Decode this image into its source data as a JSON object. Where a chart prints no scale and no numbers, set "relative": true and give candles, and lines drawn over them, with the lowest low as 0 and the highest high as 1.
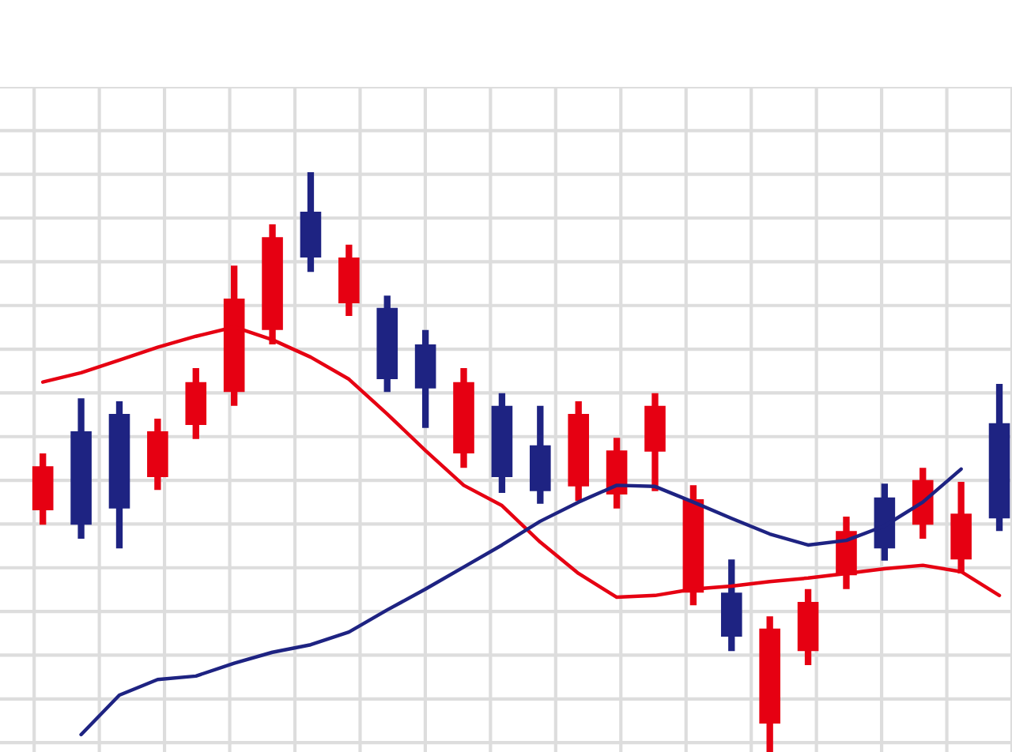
{
  "chart_data": {
    "type": "candlestick",
    "relative": true,
    "grid": true,
    "categories": [
      null,
      null,
      null,
      null,
      null,
      null,
      null,
      null,
      null,
      null,
      null,
      null,
      null,
      null,
      null,
      null,
      null,
      null,
      null,
      null,
      null,
      null,
      null,
      null,
      null,
      null
    ],
    "ohlc": [
      [
        0.417,
        0.515,
        0.392,
        0.493
      ],
      [
        0.553,
        0.61,
        0.368,
        0.392
      ],
      [
        0.583,
        0.605,
        0.351,
        0.42
      ],
      [
        0.474,
        0.575,
        0.452,
        0.553
      ],
      [
        0.564,
        0.662,
        0.54,
        0.638
      ],
      [
        0.621,
        0.839,
        0.597,
        0.782
      ],
      [
        0.728,
        0.91,
        0.703,
        0.888
      ],
      [
        0.932,
        1.0,
        0.828,
        0.853
      ],
      [
        0.774,
        0.875,
        0.752,
        0.853
      ],
      [
        0.766,
        0.787,
        0.621,
        0.643
      ],
      [
        0.703,
        0.728,
        0.559,
        0.627
      ],
      [
        0.515,
        0.662,
        0.49,
        0.638
      ],
      [
        0.597,
        0.619,
        0.447,
        0.474
      ],
      [
        0.529,
        0.597,
        0.428,
        0.45
      ],
      [
        0.458,
        0.605,
        0.433,
        0.583
      ],
      [
        0.444,
        0.542,
        0.42,
        0.52
      ],
      [
        0.518,
        0.619,
        0.45,
        0.597
      ],
      [
        0.275,
        0.46,
        0.253,
        0.436
      ],
      [
        0.275,
        0.332,
        0.174,
        0.199
      ],
      [
        0.049,
        0.234,
        0.0,
        0.213
      ],
      [
        0.174,
        0.281,
        0.15,
        0.259
      ],
      [
        0.305,
        0.406,
        0.281,
        0.381
      ],
      [
        0.439,
        0.463,
        0.33,
        0.351
      ],
      [
        0.392,
        0.49,
        0.368,
        0.469
      ],
      [
        0.332,
        0.466,
        0.308,
        0.411
      ],
      [
        0.567,
        0.635,
        0.381,
        0.403
      ]
    ],
    "colors": [
      "#e60012",
      "#1e2382",
      "#1e2382",
      "#e60012",
      "#e60012",
      "#e60012",
      "#e60012",
      "#1e2382",
      "#e60012",
      "#1e2382",
      "#1e2382",
      "#e60012",
      "#1e2382",
      "#1e2382",
      "#e60012",
      "#e60012",
      "#e60012",
      "#e60012",
      "#1e2382",
      "#e60012",
      "#e60012",
      "#e60012",
      "#1e2382",
      "#e60012",
      "#e60012",
      "#1e2382"
    ],
    "series": [
      {
        "type": "line",
        "color": "#e60012",
        "values": [
          0.638,
          0.654,
          0.676,
          0.698,
          0.717,
          0.733,
          0.711,
          0.681,
          0.643,
          0.583,
          0.52,
          0.46,
          0.425,
          0.362,
          0.308,
          0.267,
          0.27,
          0.281,
          0.286,
          0.294,
          0.3,
          0.308,
          0.316,
          0.322,
          0.311,
          0.27
        ]
      },
      {
        "type": "line",
        "color": "#1e2382",
        "values": [
          null,
          0.03,
          0.098,
          0.125,
          0.131,
          0.153,
          0.172,
          0.185,
          0.207,
          0.245,
          0.281,
          0.319,
          0.357,
          0.398,
          0.431,
          0.46,
          0.458,
          0.431,
          0.403,
          0.376,
          0.357,
          0.365,
          0.39,
          0.431,
          0.488,
          null
        ]
      }
    ]
  }
}
